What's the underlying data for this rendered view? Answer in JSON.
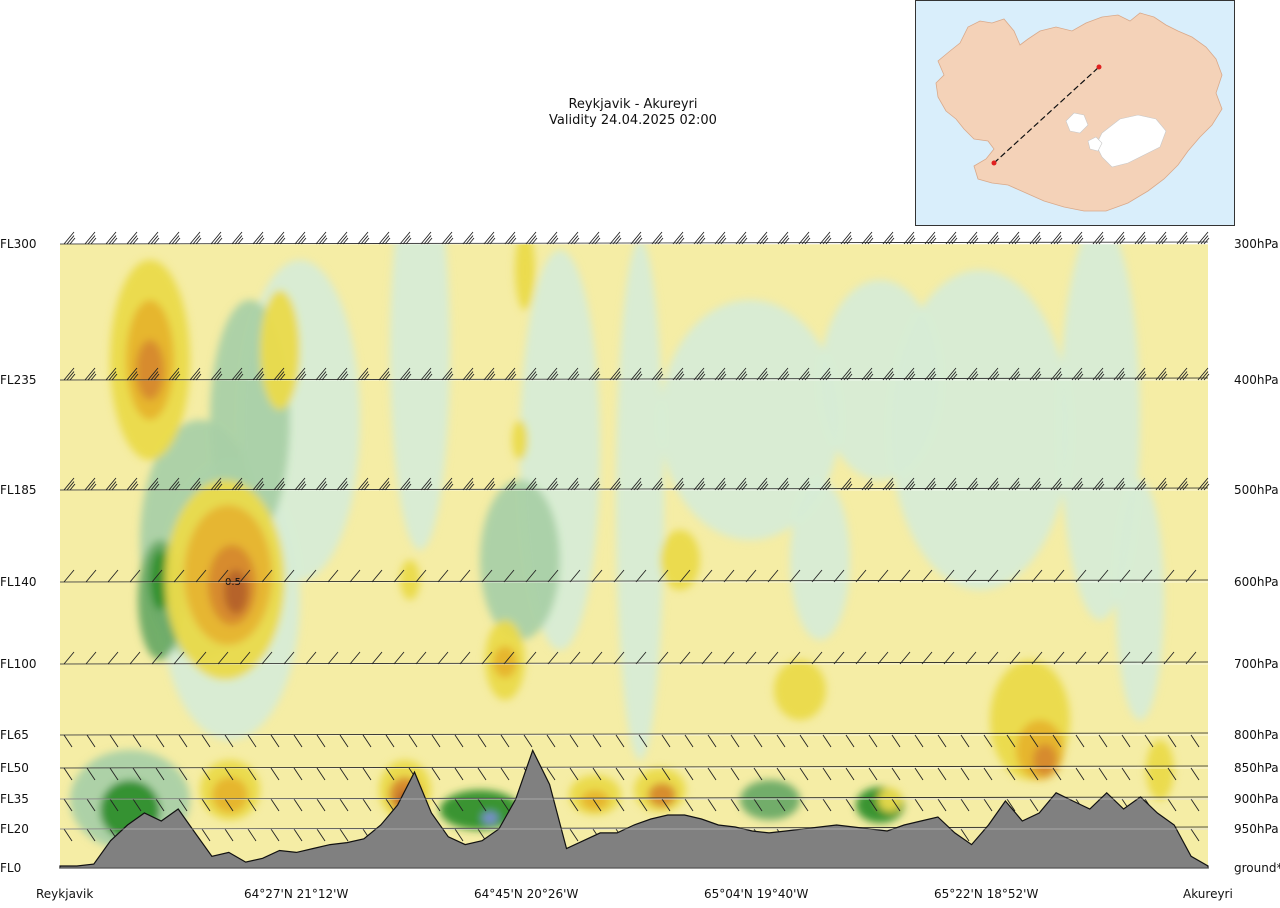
{
  "header": {
    "title_line1": "Reykjavik - Akureyri",
    "title_line2": "Validity 24.04.2025 02:00"
  },
  "chart_data": {
    "type": "cross-section",
    "route": {
      "start": "Reykjavik",
      "end": "Akureyri"
    },
    "left_axis_levels": [
      "FL300",
      "FL235",
      "FL185",
      "FL140",
      "FL100",
      "FL65",
      "FL50",
      "FL35",
      "FL20",
      "FL0"
    ],
    "right_axis_levels": [
      "300hPa",
      "400hPa",
      "500hPa",
      "600hPa",
      "700hPa",
      "800hPa",
      "850hPa",
      "900hPa",
      "950hPa",
      "ground*"
    ],
    "flight_levels": [
      300,
      235,
      185,
      140,
      100,
      65,
      50,
      35,
      20,
      0
    ],
    "x_labels": [
      "Reykjavik",
      "64°27'N 21°12'W",
      "64°45'N 20°26'W",
      "65°04'N 19°40'W",
      "65°22'N 18°52'W",
      "Akureyri"
    ],
    "x_fractions": [
      0.0,
      0.2,
      0.4,
      0.6,
      0.8,
      1.0
    ],
    "terrain_fl": [
      1,
      1,
      2,
      14,
      22,
      28,
      24,
      30,
      18,
      6,
      8,
      3,
      5,
      9,
      8,
      10,
      12,
      13,
      15,
      22,
      32,
      48,
      28,
      16,
      12,
      14,
      20,
      35,
      58,
      42,
      10,
      14,
      18,
      18,
      22,
      25,
      27,
      27,
      25,
      22,
      21,
      19,
      18,
      19,
      20,
      21,
      22,
      21,
      20,
      19,
      22,
      24,
      26,
      18,
      12,
      22,
      34,
      24,
      28,
      38,
      34,
      30,
      38,
      30,
      36,
      28,
      22,
      6,
      1
    ],
    "wind_barb_levels": [
      300,
      235,
      185,
      140,
      100,
      65,
      50,
      35,
      20
    ],
    "shading_legend": {
      "colors": [
        "#f5eda5",
        "#eada4a",
        "#e6b42e",
        "#d6892e",
        "#b4622a",
        "#d7ecd5",
        "#a9d0a7",
        "#6aaa66",
        "#2f8f2c",
        "#7c8fd6"
      ]
    },
    "highlight_value": "0.5"
  },
  "map": {
    "route_start_label": "",
    "route_end_label": ""
  }
}
